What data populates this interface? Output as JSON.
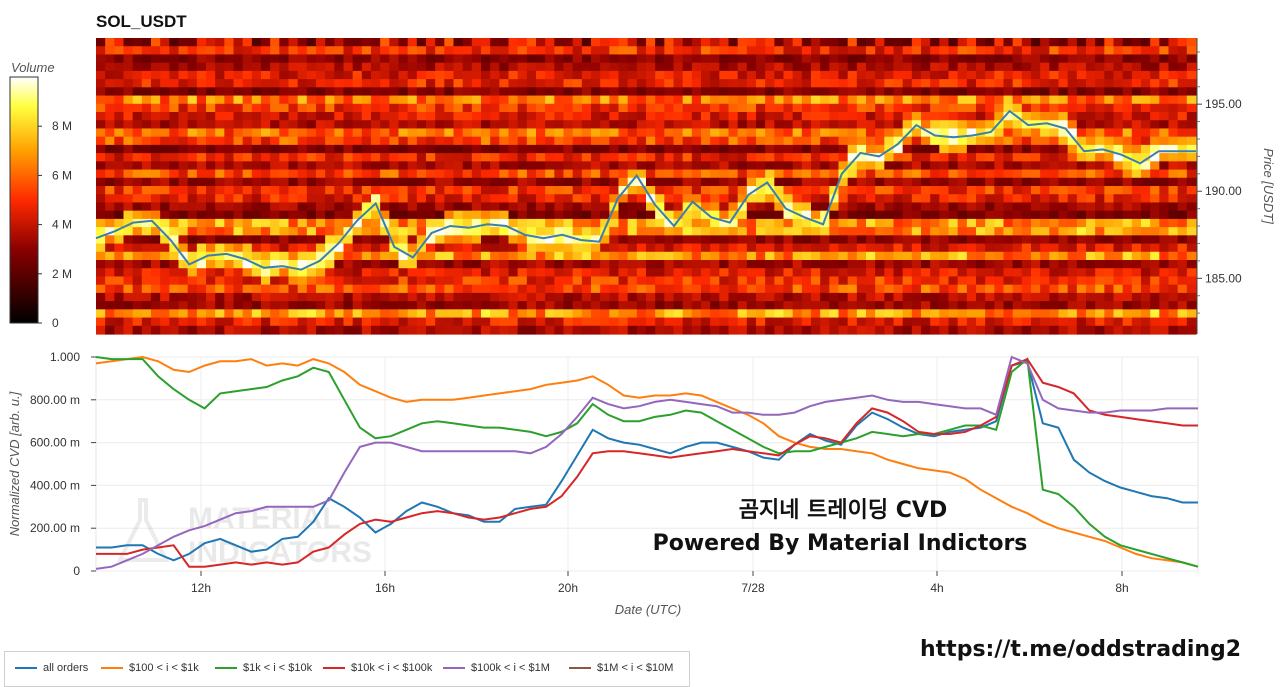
{
  "chart_data": [
    {
      "type": "heatmap",
      "title": "SOL_USDT",
      "ylabel": "Price [USDT]",
      "y_ticks": [
        "185.00",
        "190.00",
        "195.00"
      ],
      "ylim": [
        181.8,
        198.8
      ],
      "colorbar": {
        "label": "Volume",
        "ticks": [
          "0",
          "2 M",
          "4 M",
          "6 M",
          "8 M"
        ],
        "range": [
          0,
          10000000
        ]
      },
      "price_series": {
        "name": "Price",
        "values": [
          187.3,
          187.7,
          188.2,
          188.3,
          187.2,
          185.8,
          186.3,
          186.4,
          186.1,
          185.6,
          185.7,
          185.5,
          186.0,
          187.0,
          188.3,
          189.3,
          186.8,
          186.2,
          187.6,
          188.0,
          187.9,
          188.1,
          188.0,
          187.5,
          187.3,
          187.5,
          187.2,
          187.1,
          189.6,
          190.9,
          189.2,
          188.0,
          189.4,
          188.5,
          188.2,
          189.8,
          190.5,
          189.0,
          188.5,
          188.1,
          191.0,
          192.2,
          192.0,
          192.7,
          193.8,
          193.2,
          193.1,
          193.2,
          193.4,
          194.6,
          193.8,
          193.9,
          193.6,
          192.3,
          192.4,
          192.1,
          191.6,
          192.3,
          192.3,
          192.3
        ]
      }
    },
    {
      "type": "line",
      "xlabel": "Date (UTC)",
      "ylabel": "Normalized CVD [arb. u.]",
      "x_ticks": [
        "12h",
        "16h",
        "20h",
        "7/28",
        "4h",
        "8h"
      ],
      "y_ticks": [
        "0",
        "200.00 m",
        "400.00 m",
        "600.00 m",
        "800.00 m",
        "1.000"
      ],
      "ylim": [
        0,
        1
      ],
      "series": [
        {
          "name": "all orders",
          "color": "#1f77b4",
          "values": [
            0.11,
            0.11,
            0.12,
            0.12,
            0.08,
            0.05,
            0.08,
            0.13,
            0.15,
            0.12,
            0.09,
            0.1,
            0.15,
            0.16,
            0.23,
            0.34,
            0.3,
            0.25,
            0.18,
            0.22,
            0.28,
            0.32,
            0.3,
            0.27,
            0.26,
            0.23,
            0.23,
            0.29,
            0.3,
            0.31,
            0.42,
            0.54,
            0.66,
            0.62,
            0.6,
            0.59,
            0.57,
            0.55,
            0.58,
            0.6,
            0.6,
            0.58,
            0.56,
            0.53,
            0.52,
            0.59,
            0.64,
            0.61,
            0.59,
            0.68,
            0.74,
            0.71,
            0.67,
            0.64,
            0.63,
            0.65,
            0.66,
            0.67,
            0.7,
            0.96,
            0.98,
            0.69,
            0.67,
            0.52,
            0.46,
            0.42,
            0.39,
            0.37,
            0.35,
            0.34,
            0.32,
            0.32
          ]
        },
        {
          "name": "$100 < i < $1k",
          "color": "#ff7f0e",
          "values": [
            0.97,
            0.98,
            0.99,
            1.0,
            0.98,
            0.94,
            0.93,
            0.96,
            0.98,
            0.98,
            0.99,
            0.96,
            0.97,
            0.96,
            0.99,
            0.97,
            0.93,
            0.87,
            0.84,
            0.81,
            0.79,
            0.8,
            0.8,
            0.8,
            0.81,
            0.82,
            0.83,
            0.84,
            0.85,
            0.87,
            0.88,
            0.89,
            0.91,
            0.87,
            0.82,
            0.81,
            0.82,
            0.82,
            0.83,
            0.82,
            0.79,
            0.76,
            0.73,
            0.69,
            0.63,
            0.6,
            0.58,
            0.57,
            0.57,
            0.56,
            0.55,
            0.52,
            0.5,
            0.48,
            0.47,
            0.46,
            0.43,
            0.38,
            0.34,
            0.3,
            0.27,
            0.23,
            0.2,
            0.18,
            0.16,
            0.14,
            0.11,
            0.08,
            0.06,
            0.05,
            0.04,
            0.02
          ]
        },
        {
          "name": "$1k < i < $10k",
          "color": "#2ca02c",
          "values": [
            1.0,
            0.99,
            0.99,
            0.99,
            0.91,
            0.85,
            0.8,
            0.76,
            0.83,
            0.84,
            0.85,
            0.86,
            0.89,
            0.91,
            0.95,
            0.93,
            0.8,
            0.67,
            0.62,
            0.63,
            0.66,
            0.69,
            0.7,
            0.69,
            0.68,
            0.67,
            0.67,
            0.66,
            0.65,
            0.63,
            0.65,
            0.69,
            0.78,
            0.73,
            0.7,
            0.7,
            0.72,
            0.73,
            0.75,
            0.74,
            0.7,
            0.66,
            0.62,
            0.58,
            0.55,
            0.56,
            0.56,
            0.58,
            0.6,
            0.62,
            0.65,
            0.64,
            0.63,
            0.64,
            0.64,
            0.66,
            0.68,
            0.68,
            0.66,
            0.93,
            0.99,
            0.38,
            0.36,
            0.3,
            0.22,
            0.16,
            0.12,
            0.1,
            0.08,
            0.06,
            0.04,
            0.02
          ]
        },
        {
          "name": "$10k < i < $100k",
          "color": "#d62728",
          "values": [
            0.08,
            0.08,
            0.08,
            0.1,
            0.11,
            0.12,
            0.02,
            0.02,
            0.03,
            0.04,
            0.03,
            0.04,
            0.03,
            0.04,
            0.09,
            0.11,
            0.17,
            0.22,
            0.24,
            0.23,
            0.25,
            0.27,
            0.28,
            0.27,
            0.25,
            0.24,
            0.25,
            0.27,
            0.29,
            0.3,
            0.35,
            0.44,
            0.55,
            0.56,
            0.56,
            0.55,
            0.54,
            0.53,
            0.54,
            0.55,
            0.56,
            0.57,
            0.56,
            0.55,
            0.54,
            0.59,
            0.63,
            0.62,
            0.6,
            0.69,
            0.76,
            0.74,
            0.7,
            0.65,
            0.64,
            0.64,
            0.65,
            0.68,
            0.72,
            0.96,
            0.99,
            0.88,
            0.86,
            0.83,
            0.75,
            0.73,
            0.72,
            0.71,
            0.7,
            0.69,
            0.68,
            0.68
          ]
        },
        {
          "name": "$100k < i < $1M",
          "color": "#9467bd",
          "values": [
            0.01,
            0.02,
            0.05,
            0.08,
            0.12,
            0.16,
            0.19,
            0.21,
            0.24,
            0.27,
            0.28,
            0.3,
            0.3,
            0.3,
            0.3,
            0.33,
            0.46,
            0.58,
            0.6,
            0.6,
            0.58,
            0.56,
            0.56,
            0.56,
            0.56,
            0.56,
            0.56,
            0.56,
            0.55,
            0.58,
            0.64,
            0.72,
            0.81,
            0.78,
            0.76,
            0.77,
            0.79,
            0.8,
            0.79,
            0.78,
            0.77,
            0.74,
            0.74,
            0.73,
            0.73,
            0.74,
            0.77,
            0.79,
            0.8,
            0.81,
            0.82,
            0.8,
            0.79,
            0.79,
            0.78,
            0.77,
            0.76,
            0.76,
            0.73,
            1.0,
            0.97,
            0.8,
            0.76,
            0.75,
            0.74,
            0.74,
            0.75,
            0.75,
            0.75,
            0.76,
            0.76,
            0.76
          ]
        },
        {
          "name": "$1M < i < $10M",
          "color": "#8c564b",
          "values": []
        }
      ]
    }
  ],
  "overlay": {
    "line1": "곰지네 트레이딩 CVD",
    "line2": "Powered By Material Indictors"
  },
  "watermark": "MATERIAL INDICATORS",
  "link": "https://t.me/oddstrading2"
}
